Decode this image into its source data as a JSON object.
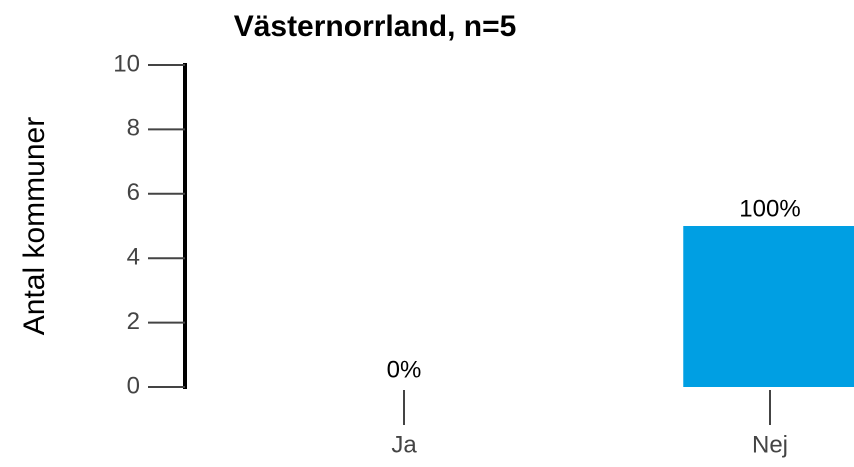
{
  "chart_data": {
    "type": "bar",
    "title": "Västernorrland, n=5",
    "ylabel": "Antal kommuner",
    "categories": [
      "Ja",
      "Nej"
    ],
    "values": [
      0,
      5
    ],
    "value_labels": [
      "0%",
      "100%"
    ],
    "color": "#009fe3",
    "ylim": [
      0,
      10
    ],
    "yticks": [
      0,
      2,
      4,
      6,
      8,
      10
    ]
  }
}
